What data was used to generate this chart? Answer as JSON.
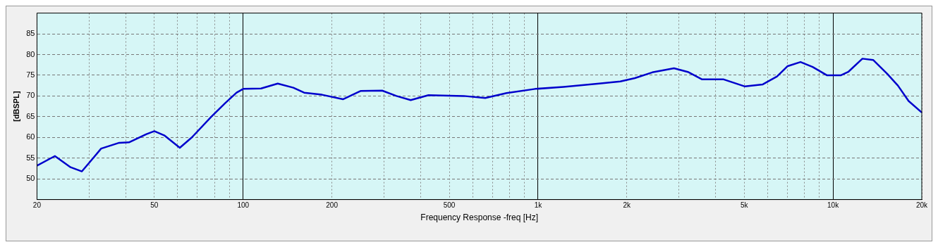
{
  "chart_data": {
    "type": "line",
    "xlabel": "Frequency Response -freq [Hz]",
    "ylabel": "[dBSPL]",
    "xlim": [
      20,
      20000
    ],
    "ylim": [
      45,
      90
    ],
    "xticks": [
      20,
      {
        "value": 30,
        "label": null
      },
      {
        "value": 40,
        "label": null
      },
      50,
      {
        "value": 60,
        "label": null
      },
      {
        "value": 70,
        "label": null
      },
      {
        "value": 80,
        "label": null
      },
      {
        "value": 90,
        "label": null
      },
      100,
      200,
      {
        "value": 300,
        "label": null
      },
      {
        "value": 400,
        "label": null
      },
      500,
      {
        "value": 600,
        "label": null
      },
      {
        "value": 700,
        "label": null
      },
      {
        "value": 800,
        "label": null
      },
      {
        "value": 900,
        "label": null
      },
      {
        "value": 1000,
        "label": "1k"
      },
      {
        "value": 2000,
        "label": "2k"
      },
      {
        "value": 3000,
        "label": null
      },
      {
        "value": 4000,
        "label": null
      },
      {
        "value": 5000,
        "label": "5k"
      },
      {
        "value": 6000,
        "label": null
      },
      {
        "value": 7000,
        "label": null
      },
      {
        "value": 8000,
        "label": null
      },
      {
        "value": 9000,
        "label": null
      },
      {
        "value": 10000,
        "label": "10k"
      },
      {
        "value": 20000,
        "label": "20k"
      }
    ],
    "yticks": [
      50,
      55,
      60,
      65,
      70,
      75,
      80,
      85
    ],
    "grid": true,
    "log": "x",
    "marker": "none",
    "line_style": "solid",
    "series": [
      {
        "color": "#0000cc",
        "x": [
          20,
          23,
          26,
          28.4,
          31,
          33,
          38,
          41,
          47,
          50,
          54,
          61,
          67,
          78,
          87,
          95,
          100,
          115,
          131,
          148,
          161,
          185,
          218,
          250,
          296,
          331,
          370,
          425,
          560,
          662,
          782,
          977,
          1220,
          1610,
          1900,
          2130,
          2440,
          2890,
          3220,
          3600,
          4260,
          5030,
          5780,
          6460,
          7020,
          7760,
          8530,
          9530,
          10650,
          11260,
          12580,
          13680,
          15290,
          16600,
          18040,
          20000
        ],
        "values": [
          53.2,
          55.5,
          52.8,
          51.8,
          55,
          57.3,
          58.7,
          58.8,
          60.8,
          61.5,
          60.5,
          57.5,
          60,
          65,
          68.3,
          70.8,
          71.7,
          71.8,
          73,
          72,
          70.8,
          70.3,
          69.2,
          71.2,
          71.3,
          70,
          69,
          70.2,
          70,
          69.5,
          70.7,
          71.7,
          72.2,
          73,
          73.5,
          74.3,
          75.7,
          76.7,
          75.8,
          74,
          74,
          72.3,
          72.8,
          74.7,
          77.2,
          78.2,
          77,
          75,
          75,
          75.8,
          79,
          78.7,
          75.3,
          72.5,
          68.8,
          66
        ]
      }
    ]
  }
}
